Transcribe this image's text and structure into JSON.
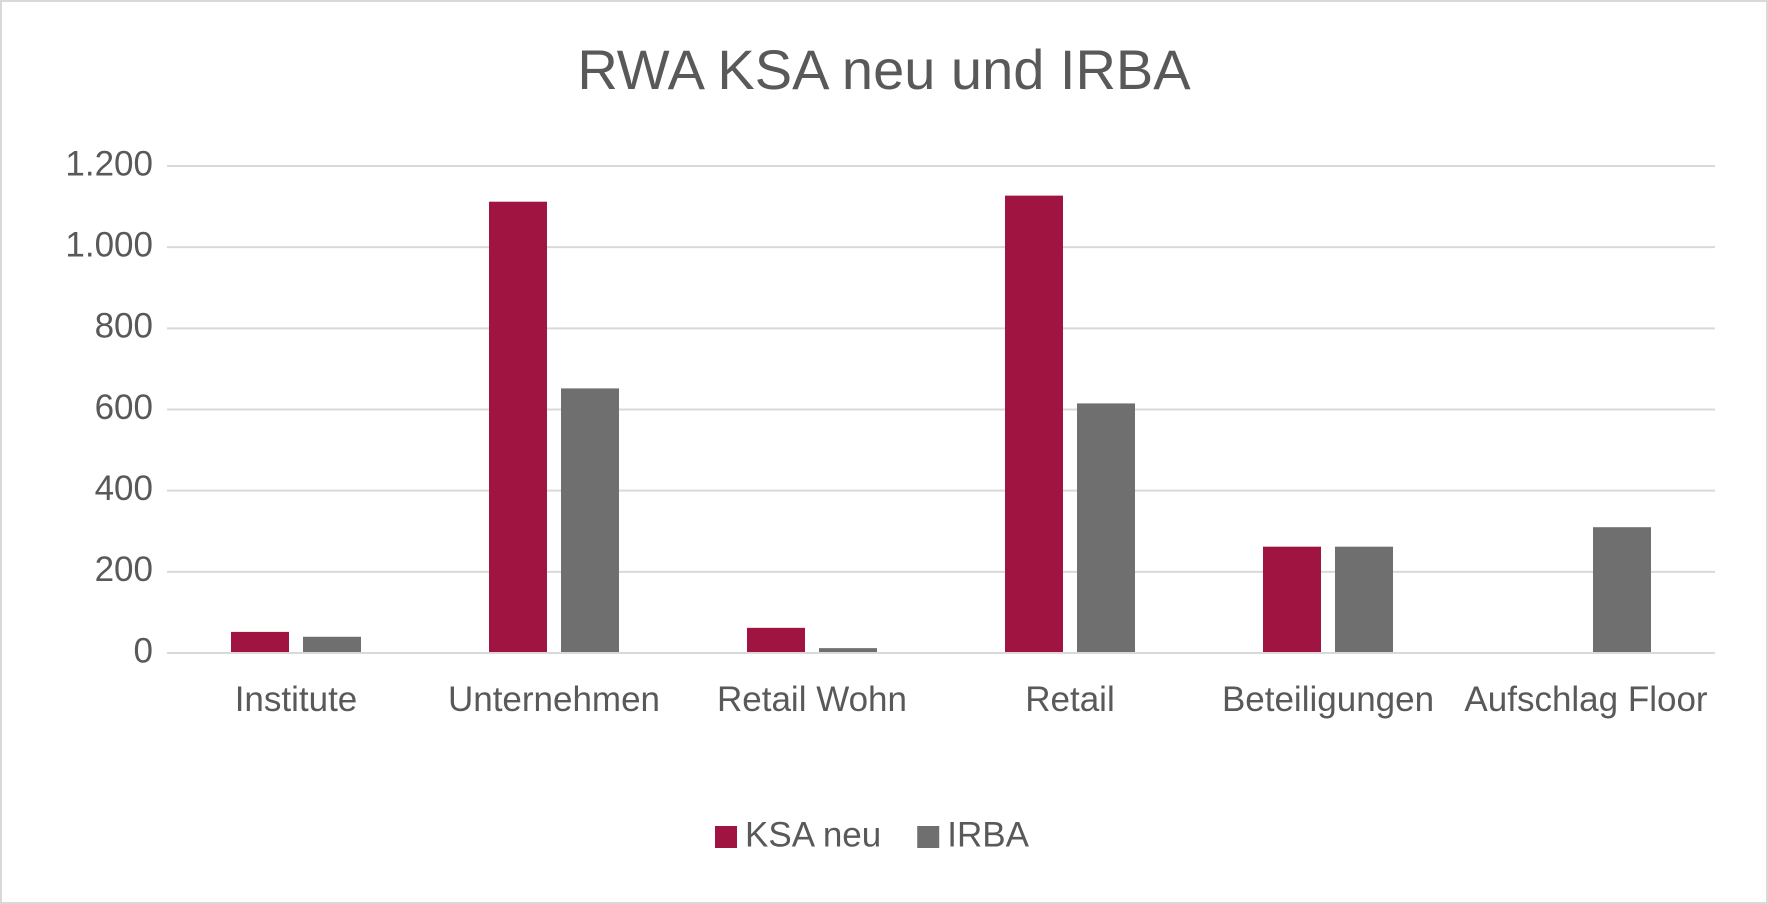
{
  "chart_data": {
    "type": "bar",
    "title": "RWA KSA neu und IRBA",
    "categories": [
      "Institute",
      "Unternehmen",
      "Retail Wohn",
      "Retail",
      "Beteiligungen",
      "Aufschlag Floor"
    ],
    "series": [
      {
        "name": "KSA neu",
        "color": "#a01441",
        "values": [
          52,
          1112,
          62,
          1127,
          262,
          null
        ]
      },
      {
        "name": "IRBA",
        "color": "#6f6f6f",
        "values": [
          40,
          652,
          12,
          615,
          262,
          310
        ]
      }
    ],
    "ylim": [
      0,
      1200
    ],
    "yticks": [
      0,
      200,
      400,
      600,
      800,
      {
        "value": 1000,
        "label": "1.000"
      },
      {
        "value": 1200,
        "label": "1.200"
      }
    ],
    "grid": true,
    "legend": "bottom"
  }
}
